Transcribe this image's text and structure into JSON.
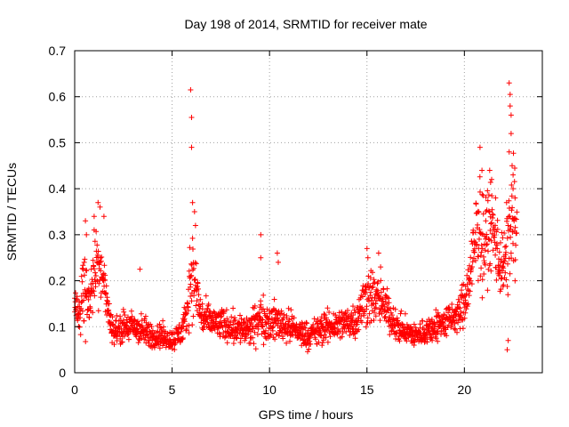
{
  "chart_data": {
    "type": "scatter",
    "title": "Day 198 of 2014, SRMTID for receiver mate",
    "xlabel": "GPS time / hours",
    "ylabel": "SRMTID / TECUs",
    "xlim": [
      0,
      24
    ],
    "ylim": [
      0,
      0.7
    ],
    "xticks": [
      0,
      5,
      10,
      15,
      20
    ],
    "xtick_labels": [
      "0",
      "5",
      "10",
      "15",
      "20"
    ],
    "yticks": [
      0,
      0.1,
      0.2,
      0.3,
      0.4,
      0.5,
      0.6,
      0.7
    ],
    "ytick_labels": [
      "0",
      "0.1",
      "0.2",
      "0.3",
      "0.4",
      "0.5",
      "0.6",
      "0.7"
    ],
    "grid": true,
    "marker": "+",
    "color": "#ff0000",
    "series": [
      {
        "name": "SRMTID",
        "profile_x": [
          0.0,
          0.25,
          0.5,
          0.75,
          1.0,
          1.25,
          1.5,
          1.75,
          2.0,
          2.5,
          3.0,
          3.5,
          4.0,
          4.5,
          5.0,
          5.25,
          5.5,
          5.75,
          5.9,
          6.0,
          6.25,
          6.5,
          7.0,
          8.0,
          9.0,
          9.5,
          10.0,
          10.5,
          11.0,
          12.0,
          12.5,
          13.0,
          14.0,
          14.5,
          15.0,
          15.5,
          16.0,
          16.5,
          17.0,
          17.5,
          18.0,
          18.5,
          19.0,
          19.5,
          19.75,
          20.0,
          20.25,
          20.5,
          20.75,
          21.0,
          21.25,
          21.5,
          21.75,
          22.0,
          22.25,
          22.5,
          22.7
        ],
        "profile_y": [
          0.14,
          0.13,
          0.2,
          0.15,
          0.22,
          0.24,
          0.2,
          0.12,
          0.09,
          0.1,
          0.1,
          0.09,
          0.08,
          0.08,
          0.07,
          0.08,
          0.09,
          0.12,
          0.2,
          0.22,
          0.18,
          0.12,
          0.11,
          0.1,
          0.09,
          0.12,
          0.11,
          0.11,
          0.1,
          0.08,
          0.09,
          0.1,
          0.11,
          0.12,
          0.17,
          0.16,
          0.14,
          0.1,
          0.09,
          0.08,
          0.09,
          0.1,
          0.11,
          0.12,
          0.13,
          0.15,
          0.2,
          0.26,
          0.33,
          0.27,
          0.32,
          0.3,
          0.26,
          0.22,
          0.28,
          0.35,
          0.3
        ],
        "profile_spread": [
          0.06,
          0.06,
          0.14,
          0.08,
          0.14,
          0.12,
          0.08,
          0.05,
          0.04,
          0.05,
          0.05,
          0.05,
          0.04,
          0.04,
          0.03,
          0.04,
          0.05,
          0.05,
          0.12,
          0.14,
          0.1,
          0.06,
          0.05,
          0.05,
          0.05,
          0.07,
          0.06,
          0.06,
          0.05,
          0.04,
          0.05,
          0.05,
          0.05,
          0.06,
          0.1,
          0.08,
          0.06,
          0.05,
          0.04,
          0.04,
          0.04,
          0.05,
          0.05,
          0.05,
          0.06,
          0.08,
          0.1,
          0.14,
          0.16,
          0.14,
          0.15,
          0.12,
          0.12,
          0.12,
          0.16,
          0.22,
          0.12
        ],
        "peak_points": [
          [
            5.95,
            0.615
          ],
          [
            6.0,
            0.555
          ],
          [
            6.0,
            0.49
          ],
          [
            6.05,
            0.37
          ],
          [
            6.15,
            0.35
          ],
          [
            6.2,
            0.32
          ],
          [
            1.2,
            0.37
          ],
          [
            1.3,
            0.36
          ],
          [
            1.0,
            0.34
          ],
          [
            1.5,
            0.34
          ],
          [
            0.55,
            0.33
          ],
          [
            0.6,
            0.3
          ],
          [
            3.35,
            0.225
          ],
          [
            9.55,
            0.3
          ],
          [
            9.55,
            0.25
          ],
          [
            10.4,
            0.26
          ],
          [
            10.45,
            0.24
          ],
          [
            15.0,
            0.27
          ],
          [
            15.05,
            0.25
          ],
          [
            15.6,
            0.26
          ],
          [
            15.7,
            0.23
          ],
          [
            20.8,
            0.49
          ],
          [
            20.9,
            0.44
          ],
          [
            21.3,
            0.44
          ],
          [
            21.4,
            0.42
          ],
          [
            21.6,
            0.38
          ],
          [
            21.1,
            0.35
          ],
          [
            22.3,
            0.63
          ],
          [
            22.35,
            0.605
          ],
          [
            22.35,
            0.58
          ],
          [
            22.4,
            0.56
          ],
          [
            22.4,
            0.52
          ],
          [
            22.3,
            0.48
          ],
          [
            22.45,
            0.45
          ],
          [
            22.5,
            0.43
          ],
          [
            22.5,
            0.4
          ],
          [
            22.6,
            0.38
          ],
          [
            22.2,
            0.05
          ],
          [
            22.25,
            0.07
          ],
          [
            22.6,
            0.2
          ],
          [
            22.55,
            0.33
          ]
        ]
      }
    ]
  }
}
